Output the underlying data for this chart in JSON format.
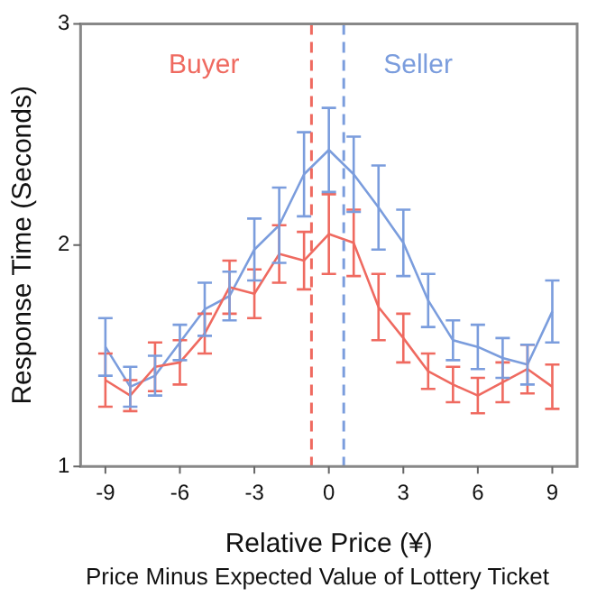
{
  "chart_data": {
    "type": "line",
    "xlabel": "Relative Price (¥)",
    "ylabel": "Response Time (Seconds)",
    "annotations": [
      "Price Minus Expected Value of Lottery Ticket"
    ],
    "x": [
      -9,
      -8,
      -7,
      -6,
      -5,
      -4,
      -3,
      -2,
      -1,
      0,
      1,
      2,
      3,
      4,
      5,
      6,
      7,
      8,
      9
    ],
    "xlim": [
      -10,
      10
    ],
    "xticks": [
      -9,
      -6,
      -3,
      0,
      3,
      6,
      9
    ],
    "ylim": [
      1,
      3
    ],
    "yticks": [
      1,
      2,
      3
    ],
    "grid": false,
    "legend": false,
    "marker": "none",
    "line_style": "solid",
    "series": [
      {
        "name": "Buyer",
        "color": "#ef6a60",
        "values": [
          1.39,
          1.32,
          1.45,
          1.47,
          1.6,
          1.81,
          1.78,
          1.96,
          1.93,
          2.05,
          2.01,
          1.72,
          1.58,
          1.43,
          1.37,
          1.32,
          1.38,
          1.44,
          1.36
        ],
        "errors": [
          0.12,
          0.07,
          0.11,
          0.1,
          0.09,
          0.12,
          0.11,
          0.13,
          0.13,
          0.18,
          0.15,
          0.15,
          0.11,
          0.08,
          0.08,
          0.08,
          0.09,
          0.11,
          0.1
        ]
      },
      {
        "name": "Seller",
        "color": "#7b9ddd",
        "values": [
          1.54,
          1.36,
          1.41,
          1.56,
          1.71,
          1.77,
          1.98,
          2.09,
          2.32,
          2.43,
          2.32,
          2.17,
          2.01,
          1.75,
          1.57,
          1.54,
          1.49,
          1.46,
          1.7
        ],
        "errors": [
          0.13,
          0.09,
          0.09,
          0.08,
          0.12,
          0.11,
          0.14,
          0.17,
          0.19,
          0.19,
          0.17,
          0.19,
          0.15,
          0.12,
          0.09,
          0.1,
          0.09,
          0.09,
          0.14
        ]
      }
    ],
    "ref_lines": [
      {
        "axis": "x",
        "value": -0.7,
        "color": "#ef6a60",
        "line_style": "dashed"
      },
      {
        "axis": "x",
        "value": 0.6,
        "color": "#7b9ddd",
        "line_style": "dashed"
      }
    ]
  }
}
